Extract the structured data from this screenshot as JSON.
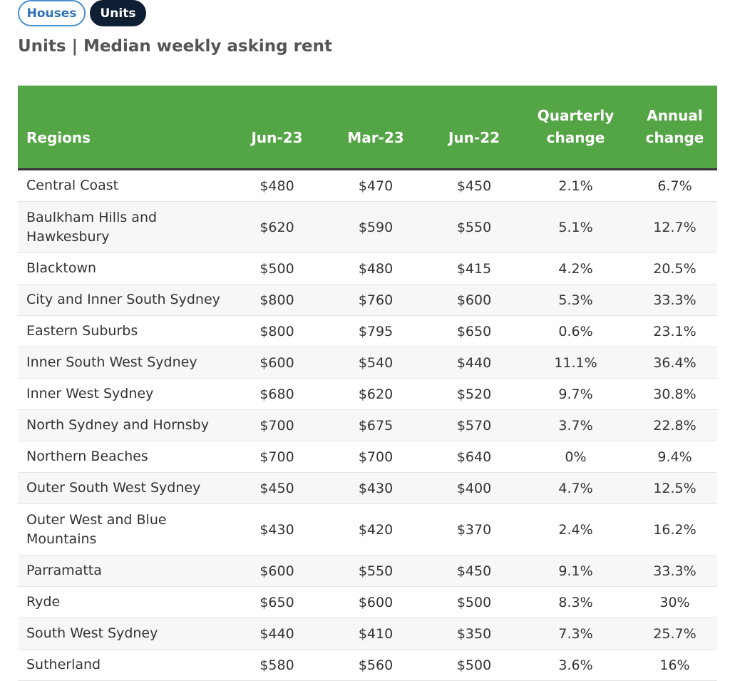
{
  "toggles": {
    "houses_label": "Houses",
    "units_label": "Units"
  },
  "page_title": "Units | Median weekly asking rent",
  "colors": {
    "header_bg": "#54a545",
    "active_toggle_bg": "#0f1f33",
    "inactive_toggle_border": "#4a8fd0"
  },
  "table": {
    "headers": {
      "region": "Regions",
      "jun23": "Jun-23",
      "mar23": "Mar-23",
      "jun22": "Jun-22",
      "quarterly_line1": "Quarterly",
      "quarterly_line2": "change",
      "annual_line1": "Annual",
      "annual_line2": "change"
    },
    "rows": [
      {
        "region": "Central Coast",
        "jun23": "$480",
        "mar23": "$470",
        "jun22": "$450",
        "quarterly": "2.1%",
        "annual": "6.7%"
      },
      {
        "region": "Baulkham Hills and Hawkesbury",
        "jun23": "$620",
        "mar23": "$590",
        "jun22": "$550",
        "quarterly": "5.1%",
        "annual": "12.7%"
      },
      {
        "region": "Blacktown",
        "jun23": "$500",
        "mar23": "$480",
        "jun22": "$415",
        "quarterly": "4.2%",
        "annual": "20.5%"
      },
      {
        "region": "City and Inner South Sydney",
        "jun23": "$800",
        "mar23": "$760",
        "jun22": "$600",
        "quarterly": "5.3%",
        "annual": "33.3%"
      },
      {
        "region": "Eastern Suburbs",
        "jun23": "$800",
        "mar23": "$795",
        "jun22": "$650",
        "quarterly": "0.6%",
        "annual": "23.1%"
      },
      {
        "region": "Inner South West Sydney",
        "jun23": "$600",
        "mar23": "$540",
        "jun22": "$440",
        "quarterly": "11.1%",
        "annual": "36.4%"
      },
      {
        "region": "Inner West Sydney",
        "jun23": "$680",
        "mar23": "$620",
        "jun22": "$520",
        "quarterly": "9.7%",
        "annual": "30.8%"
      },
      {
        "region": "North Sydney and Hornsby",
        "jun23": "$700",
        "mar23": "$675",
        "jun22": "$570",
        "quarterly": "3.7%",
        "annual": "22.8%"
      },
      {
        "region": "Northern Beaches",
        "jun23": "$700",
        "mar23": "$700",
        "jun22": "$640",
        "quarterly": "0%",
        "annual": "9.4%"
      },
      {
        "region": "Outer South West Sydney",
        "jun23": "$450",
        "mar23": "$430",
        "jun22": "$400",
        "quarterly": "4.7%",
        "annual": "12.5%"
      },
      {
        "region": "Outer West and Blue Mountains",
        "jun23": "$430",
        "mar23": "$420",
        "jun22": "$370",
        "quarterly": "2.4%",
        "annual": "16.2%"
      },
      {
        "region": "Parramatta",
        "jun23": "$600",
        "mar23": "$550",
        "jun22": "$450",
        "quarterly": "9.1%",
        "annual": "33.3%"
      },
      {
        "region": "Ryde",
        "jun23": "$650",
        "mar23": "$600",
        "jun22": "$500",
        "quarterly": "8.3%",
        "annual": "30%"
      },
      {
        "region": "South West Sydney",
        "jun23": "$440",
        "mar23": "$410",
        "jun22": "$350",
        "quarterly": "7.3%",
        "annual": "25.7%"
      },
      {
        "region": "Sutherland",
        "jun23": "$580",
        "mar23": "$560",
        "jun22": "$500",
        "quarterly": "3.6%",
        "annual": "16%"
      }
    ]
  }
}
